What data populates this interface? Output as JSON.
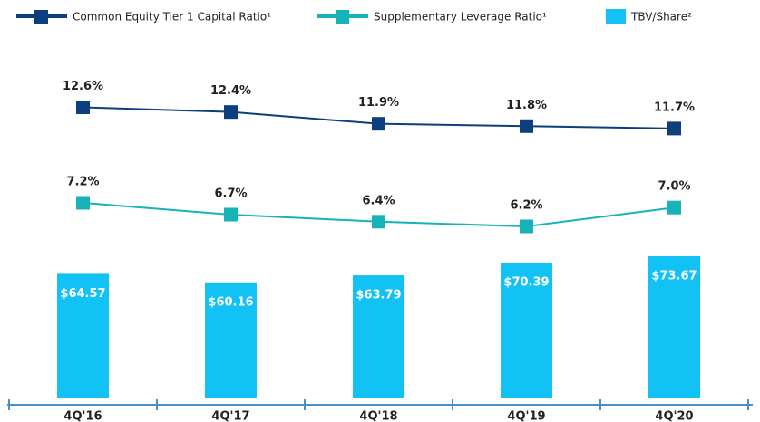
{
  "chart_data": {
    "type": "combo",
    "categories": [
      "4Q'16",
      "4Q'17",
      "4Q'18",
      "4Q'19",
      "4Q'20"
    ],
    "series": [
      {
        "name": "Common Equity Tier 1 Capital Ratio¹",
        "type": "line",
        "color": "#0d3f7e",
        "values": [
          12.6,
          12.4,
          11.9,
          11.8,
          11.7
        ],
        "value_labels": [
          "12.6%",
          "12.4%",
          "11.9%",
          "11.8%",
          "11.7%"
        ]
      },
      {
        "name": "Supplementary Leverage Ratio¹",
        "type": "line",
        "color": "#17b3b8",
        "values": [
          7.2,
          6.7,
          6.4,
          6.2,
          7.0
        ],
        "value_labels": [
          "7.2%",
          "6.7%",
          "6.4%",
          "6.2%",
          "7.0%"
        ]
      },
      {
        "name": "TBV/Share²",
        "type": "bar",
        "color": "#12c2f4",
        "values": [
          64.57,
          60.16,
          63.79,
          70.39,
          73.67
        ],
        "value_labels": [
          "$64.57",
          "$60.16",
          "$63.79",
          "$70.39",
          "$73.67"
        ]
      }
    ]
  }
}
